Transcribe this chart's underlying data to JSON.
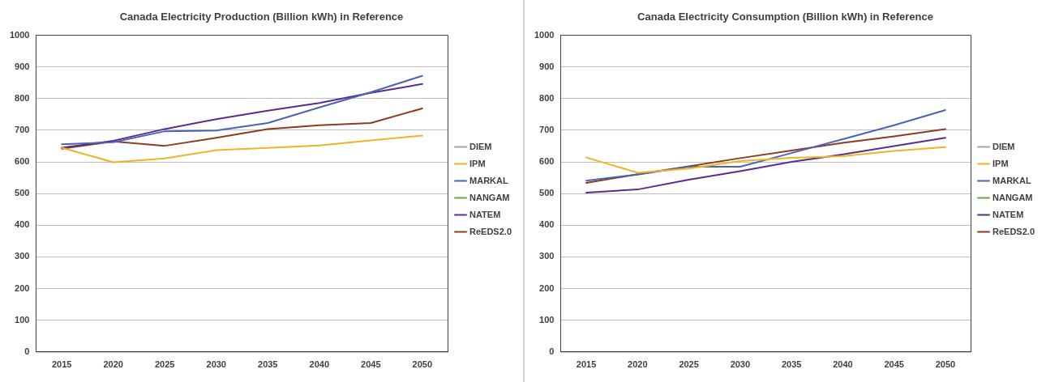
{
  "chart_data": [
    {
      "type": "line",
      "title": "Canada Electricity Production (Billion kWh) in Reference",
      "categories": [
        "2015",
        "2020",
        "2025",
        "2030",
        "2035",
        "2040",
        "2045",
        "2050"
      ],
      "ylim": [
        0,
        1000
      ],
      "yticks": [
        0,
        100,
        200,
        300,
        400,
        500,
        600,
        700,
        800,
        900,
        1000
      ],
      "grid": "y",
      "legend": "right",
      "marker": "none",
      "line_style": "solid",
      "series": [
        {
          "name": "DIEM",
          "color": "#a5a5a5",
          "values": [
            null,
            null,
            null,
            null,
            null,
            null,
            null,
            null
          ]
        },
        {
          "name": "IPM",
          "color": "#f0b323",
          "values": [
            645,
            599,
            611,
            637,
            644,
            652,
            668,
            683
          ]
        },
        {
          "name": "MARKAL",
          "color": "#4a63b8",
          "values": [
            656,
            662,
            697,
            699,
            723,
            772,
            820,
            872
          ]
        },
        {
          "name": "NANGAM",
          "color": "#6aa84f",
          "values": [
            null,
            null,
            null,
            null,
            null,
            null,
            null,
            null
          ]
        },
        {
          "name": "NATEM",
          "color": "#5b2c8f",
          "values": [
            645,
            667,
            704,
            735,
            762,
            786,
            818,
            846
          ]
        },
        {
          "name": "ReEDS2.0",
          "color": "#8b3d1e",
          "values": [
            642,
            665,
            651,
            676,
            704,
            716,
            723,
            769
          ]
        }
      ]
    },
    {
      "type": "line",
      "title": "Canada Electricity Consumption (Billion kWh) in Reference",
      "categories": [
        "2015",
        "2020",
        "2025",
        "2030",
        "2035",
        "2040",
        "2045",
        "2050"
      ],
      "ylim": [
        0,
        1000
      ],
      "yticks": [
        0,
        100,
        200,
        300,
        400,
        500,
        600,
        700,
        800,
        900,
        1000
      ],
      "grid": "y",
      "legend": "right",
      "marker": "none",
      "line_style": "solid",
      "series": [
        {
          "name": "DIEM",
          "color": "#a5a5a5",
          "values": [
            null,
            null,
            null,
            null,
            null,
            null,
            null,
            null
          ]
        },
        {
          "name": "IPM",
          "color": "#f0b323",
          "values": [
            614,
            566,
            579,
            603,
            613,
            618,
            635,
            647
          ]
        },
        {
          "name": "MARKAL",
          "color": "#4a63b8",
          "values": [
            541,
            560,
            585,
            585,
            628,
            672,
            716,
            764
          ]
        },
        {
          "name": "NANGAM",
          "color": "#6aa84f",
          "values": [
            null,
            null,
            null,
            null,
            null,
            null,
            null,
            null
          ]
        },
        {
          "name": "NATEM",
          "color": "#5b2c8f",
          "values": [
            503,
            513,
            544,
            571,
            600,
            624,
            650,
            676
          ]
        },
        {
          "name": "ReEDS2.0",
          "color": "#8b3d1e",
          "values": [
            534,
            561,
            586,
            612,
            636,
            660,
            681,
            704
          ]
        }
      ]
    }
  ]
}
